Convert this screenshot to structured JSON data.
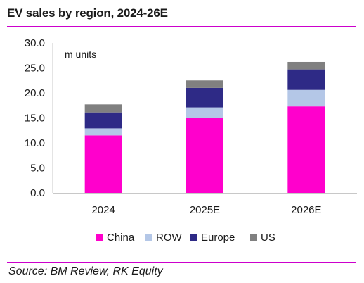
{
  "header": {
    "title": "EV sales by region, 2024-26E"
  },
  "footer": {
    "source": "Source: BM Review, RK Equity"
  },
  "chart_data": {
    "type": "bar",
    "stacked": true,
    "title": "EV sales by region, 2024-26E",
    "annotation": "m units",
    "xlabel": "",
    "ylabel": "",
    "categories": [
      "2024",
      "2025E",
      "2026E"
    ],
    "ylim": [
      0,
      30
    ],
    "yticks": [
      "0.0",
      "5.0",
      "10.0",
      "15.0",
      "20.0",
      "25.0",
      "30.0"
    ],
    "grid": false,
    "legend": "bottom",
    "series": [
      {
        "name": "China",
        "color": "#ff00cc",
        "values": [
          11.5,
          15.0,
          17.3
        ]
      },
      {
        "name": "ROW",
        "color": "#b4c7e7",
        "values": [
          1.4,
          2.1,
          3.3
        ]
      },
      {
        "name": "Europe",
        "color": "#2e2a86",
        "values": [
          3.2,
          3.9,
          4.1
        ]
      },
      {
        "name": "US",
        "color": "#808080",
        "values": [
          1.6,
          1.5,
          1.5
        ]
      }
    ]
  }
}
